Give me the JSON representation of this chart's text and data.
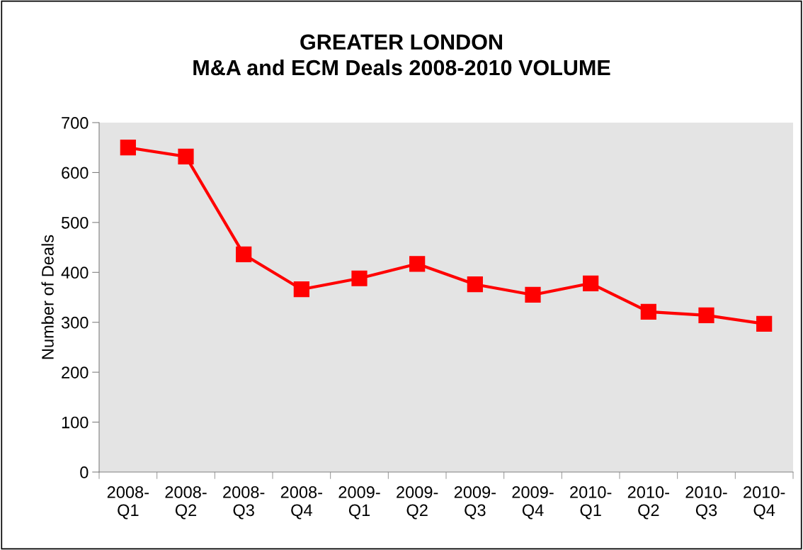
{
  "chart_data": {
    "type": "line",
    "title": "GREATER LONDON\nM&A and ECM Deals 2008-2010 VOLUME",
    "ylabel": "Number of Deals",
    "categories": [
      "2008-\nQ1",
      "2008-\nQ2",
      "2008-\nQ3",
      "2008-\nQ4",
      "2009-\nQ1",
      "2009-\nQ2",
      "2009-\nQ3",
      "2009-\nQ4",
      "2010-\nQ1",
      "2010-\nQ2",
      "2010-\nQ3",
      "2010-\nQ4"
    ],
    "series": [
      {
        "color": "#ff0000",
        "values": [
          650,
          632,
          436,
          366,
          388,
          417,
          376,
          355,
          378,
          321,
          314,
          297
        ]
      }
    ],
    "ylim": [
      0,
      700
    ],
    "yticks": [
      0,
      100,
      200,
      300,
      400,
      500,
      600,
      700
    ],
    "grid": false,
    "marker": "square",
    "line_style": "solid"
  }
}
